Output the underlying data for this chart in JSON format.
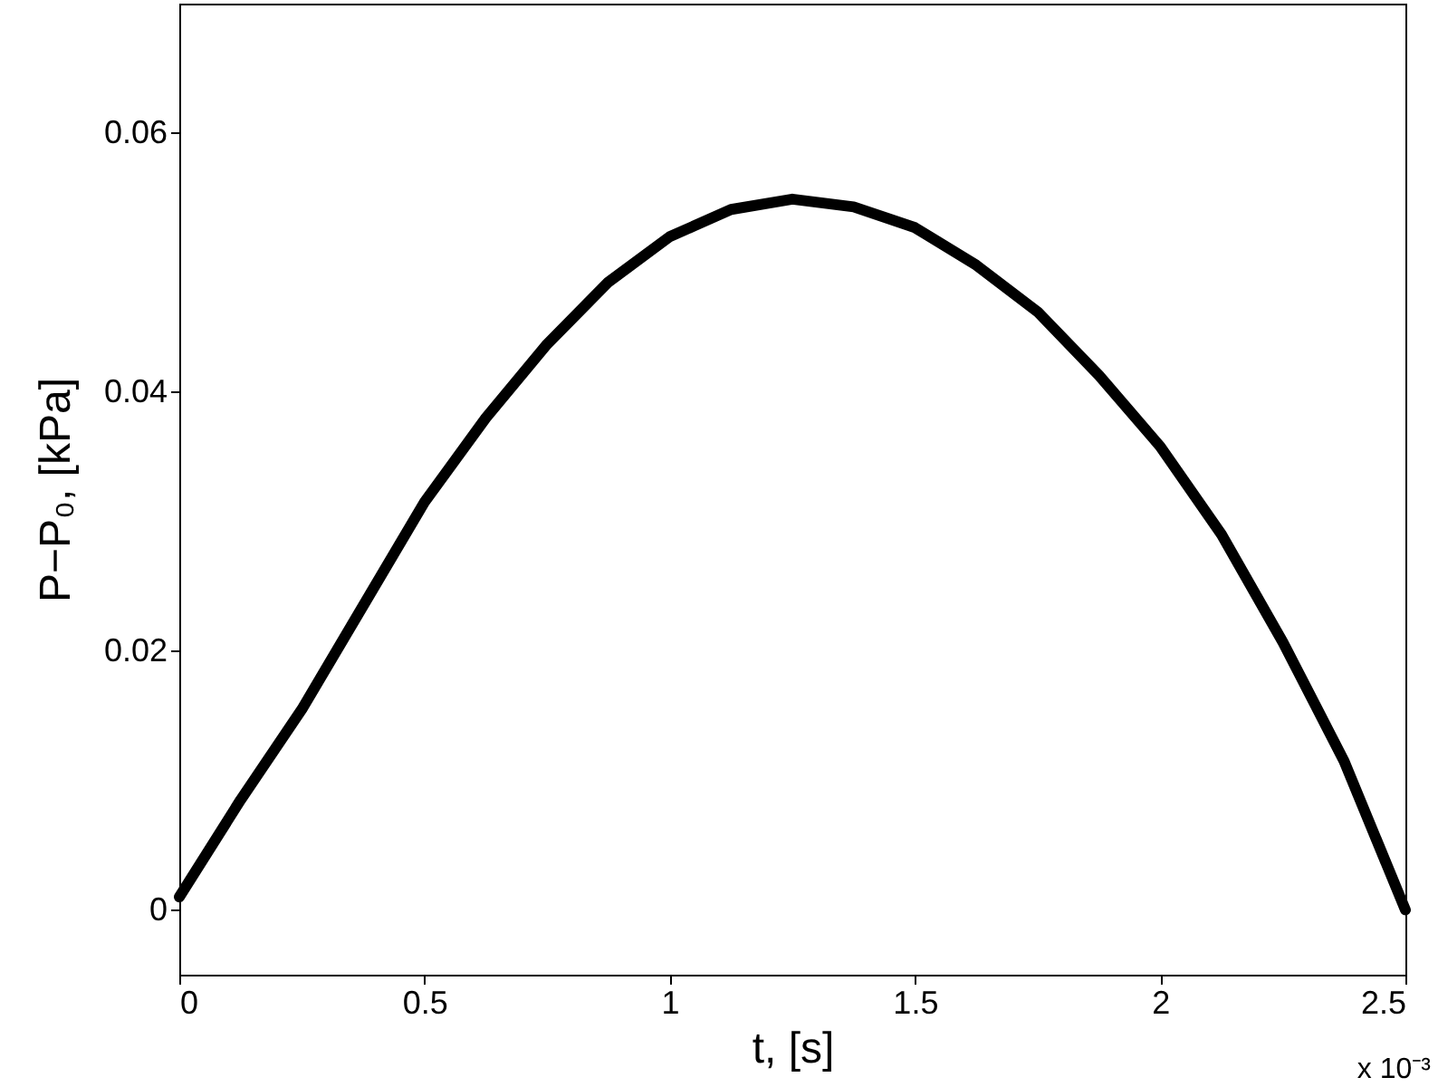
{
  "chart_data": {
    "type": "line",
    "xlabel": "t,  [s]",
    "ylabel": "P−P₀, [kPa]",
    "annotations": [
      "x 10⁻³"
    ],
    "x": [
      0,
      0.125,
      0.25,
      0.375,
      0.5,
      0.625,
      0.75,
      0.875,
      1.0,
      1.125,
      1.25,
      1.375,
      1.5,
      1.625,
      1.75,
      1.875,
      2.0,
      2.125,
      2.25,
      2.375,
      2.5
    ],
    "series": [
      {
        "color": "#000000",
        "values": [
          0.001,
          0.0085,
          0.0155,
          0.0235,
          0.0315,
          0.038,
          0.0437,
          0.0485,
          0.052,
          0.0541,
          0.0549,
          0.0543,
          0.0527,
          0.0498,
          0.0462,
          0.0413,
          0.0358,
          0.029,
          0.0207,
          0.0115,
          0.0
        ]
      }
    ],
    "xlim": [
      0,
      2.5
    ],
    "xticks": [
      0,
      0.5,
      1,
      1.5,
      2,
      2.5
    ],
    "ylim": [
      -0.005,
      0.07
    ],
    "yticks": [
      0,
      0.02,
      0.04,
      0.06
    ],
    "grid": false,
    "line_style": "solid",
    "marker": "none"
  }
}
